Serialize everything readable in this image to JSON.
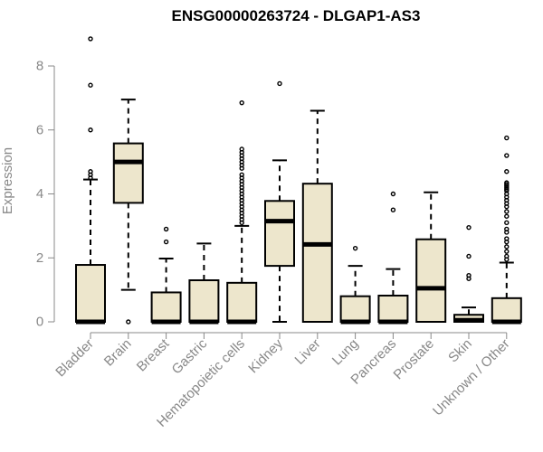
{
  "chart_data": {
    "type": "box",
    "title": "ENSG00000263724 - DLGAP1-AS3",
    "xlabel": "",
    "ylabel": "Expression",
    "ylim": [
      0,
      8
    ],
    "yticks": [
      0,
      2,
      4,
      6,
      8
    ],
    "box_fill": "#ede6cc",
    "categories": [
      "Bladder",
      "Brain",
      "Breast",
      "Gastric",
      "Hematopoietic cells",
      "Kidney",
      "Liver",
      "Lung",
      "Pancreas",
      "Prostate",
      "Skin",
      "Unknown / Other"
    ],
    "boxes": [
      {
        "q1": 0,
        "median": 0,
        "q3": 1.78,
        "whisker_low": 0,
        "whisker_high": 4.45,
        "outliers": [
          8.85,
          7.4,
          6.0,
          4.7,
          4.6,
          4.5
        ]
      },
      {
        "q1": 3.72,
        "median": 5.0,
        "q3": 5.58,
        "whisker_low": 1.0,
        "whisker_high": 6.95,
        "outliers": [
          0.0
        ]
      },
      {
        "q1": 0,
        "median": 0,
        "q3": 0.92,
        "whisker_low": 0,
        "whisker_high": 1.98,
        "outliers": [
          2.9,
          2.5
        ]
      },
      {
        "q1": 0,
        "median": 0,
        "q3": 1.3,
        "whisker_low": 0,
        "whisker_high": 2.45,
        "outliers": []
      },
      {
        "q1": 0,
        "median": 0,
        "q3": 1.22,
        "whisker_low": 0,
        "whisker_high": 3.0,
        "outliers": [
          6.85,
          5.4,
          5.3,
          5.2,
          5.1,
          5.0,
          4.9,
          4.8,
          4.6,
          4.5,
          4.4,
          4.3,
          4.2,
          4.1,
          4.0,
          3.9,
          3.8,
          3.7,
          3.6,
          3.5,
          3.4,
          3.3,
          3.2,
          3.1
        ]
      },
      {
        "q1": 1.75,
        "median": 3.15,
        "q3": 3.78,
        "whisker_low": 0,
        "whisker_high": 5.05,
        "outliers": [
          7.45
        ]
      },
      {
        "q1": 0,
        "median": 2.42,
        "q3": 4.32,
        "whisker_low": 0,
        "whisker_high": 6.6,
        "outliers": []
      },
      {
        "q1": 0,
        "median": 0,
        "q3": 0.8,
        "whisker_low": 0,
        "whisker_high": 1.75,
        "outliers": [
          2.3
        ]
      },
      {
        "q1": 0,
        "median": 0,
        "q3": 0.82,
        "whisker_low": 0,
        "whisker_high": 1.65,
        "outliers": [
          4.0,
          3.5
        ]
      },
      {
        "q1": 0,
        "median": 1.05,
        "q3": 2.58,
        "whisker_low": 0,
        "whisker_high": 4.05,
        "outliers": []
      },
      {
        "q1": 0,
        "median": 0.05,
        "q3": 0.22,
        "whisker_low": 0,
        "whisker_high": 0.45,
        "outliers": [
          2.95,
          2.05,
          1.45,
          1.35
        ]
      },
      {
        "q1": 0,
        "median": 0,
        "q3": 0.74,
        "whisker_low": 0,
        "whisker_high": 1.85,
        "outliers": [
          5.75,
          5.2,
          4.7,
          4.35,
          4.3,
          4.25,
          4.2,
          4.15,
          4.1,
          4.0,
          3.9,
          3.8,
          3.7,
          3.6,
          3.45,
          3.3,
          3.1,
          2.9,
          2.8,
          2.6,
          2.5,
          2.35,
          2.2,
          2.05,
          1.95
        ]
      }
    ]
  }
}
